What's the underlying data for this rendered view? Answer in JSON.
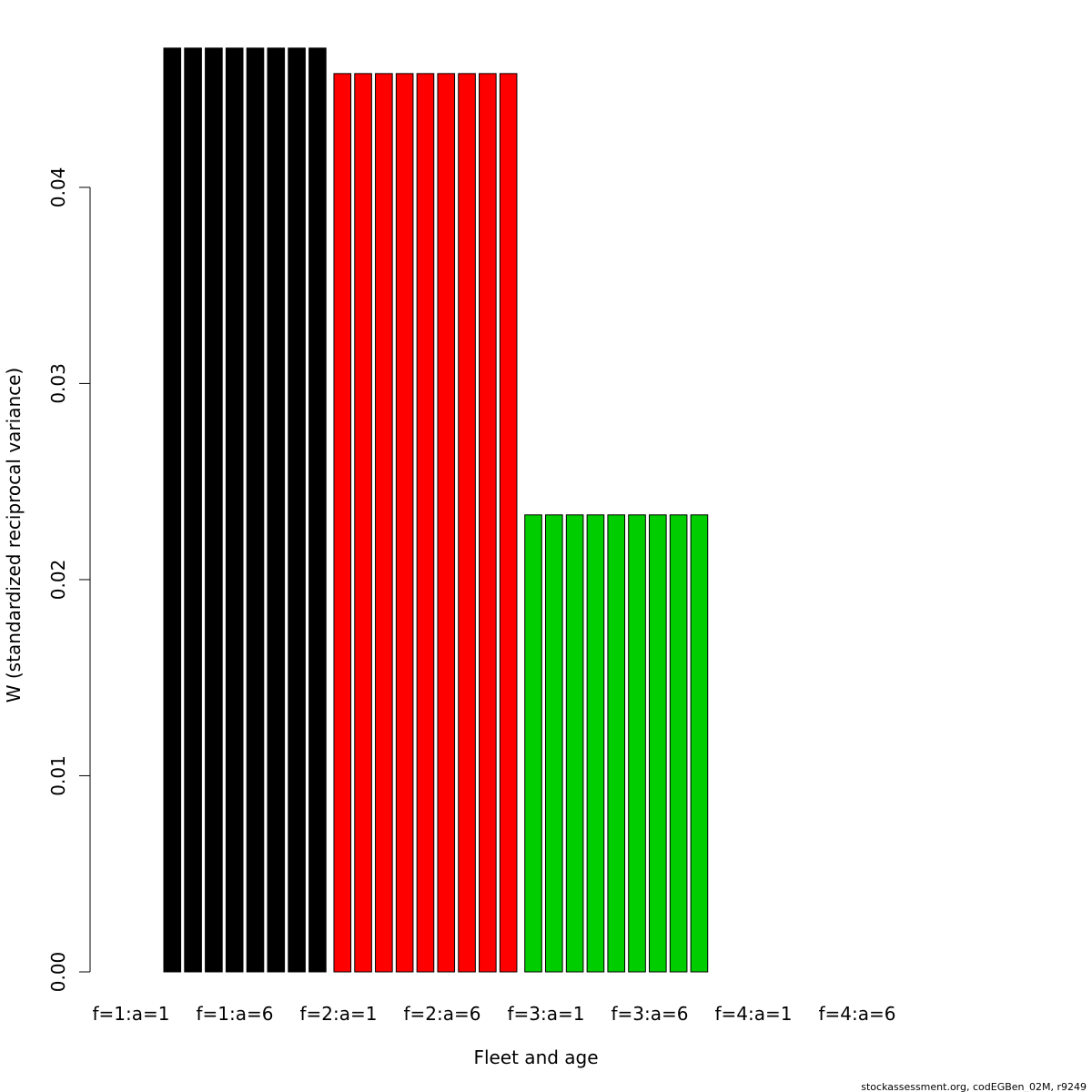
{
  "chart_data": {
    "type": "bar",
    "xlabel": "Fleet and age",
    "ylabel": "W (standardized reciprocal variance)",
    "ylim": [
      0,
      0.047
    ],
    "yticks": [
      "0.00",
      "0.01",
      "0.02",
      "0.03",
      "0.04"
    ],
    "xtick_labels": [
      "f=1:a=1",
      "f=1:a=6",
      "f=2:a=1",
      "f=2:a=6",
      "f=3:a=1",
      "f=3:a=6",
      "f=4:a=1",
      "f=4:a=6"
    ],
    "groups": [
      {
        "fleet": "f=1",
        "color": "#000000",
        "values": [
          0.0471,
          0.0471,
          0.0471,
          0.0471,
          0.0471,
          0.0471,
          0.0471,
          0.0471
        ]
      },
      {
        "fleet": "f=2",
        "color": "#ff0000",
        "values": [
          0.0458,
          0.0458,
          0.0458,
          0.0458,
          0.0458,
          0.0458,
          0.0458,
          0.0458,
          0.0458
        ]
      },
      {
        "fleet": "f=3",
        "color": "#00cd00",
        "values": [
          0.0233,
          0.0233,
          0.0233,
          0.0233,
          0.0233,
          0.0233,
          0.0233,
          0.0233,
          0.0233
        ]
      },
      {
        "fleet": "f=4",
        "color": "#0000ff",
        "values": []
      }
    ],
    "footer": "stockassessment.org, codEGBen_02M, r9249",
    "grid": false,
    "legend": "none"
  }
}
